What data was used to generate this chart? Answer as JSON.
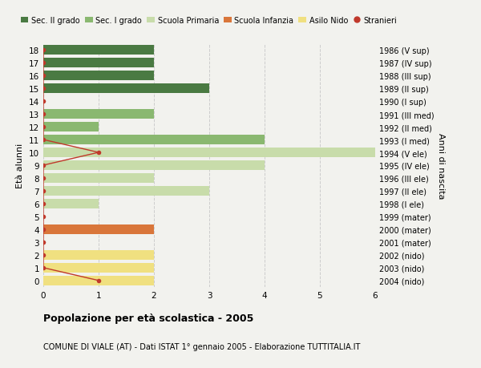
{
  "ages": [
    0,
    1,
    2,
    3,
    4,
    5,
    6,
    7,
    8,
    9,
    10,
    11,
    12,
    13,
    14,
    15,
    16,
    17,
    18
  ],
  "right_labels": [
    "2004 (nido)",
    "2003 (nido)",
    "2002 (nido)",
    "2001 (mater)",
    "2000 (mater)",
    "1999 (mater)",
    "1998 (I ele)",
    "1997 (II ele)",
    "1996 (III ele)",
    "1995 (IV ele)",
    "1994 (V ele)",
    "1993 (I med)",
    "1992 (II med)",
    "1991 (III med)",
    "1990 (I sup)",
    "1989 (II sup)",
    "1988 (III sup)",
    "1987 (IV sup)",
    "1986 (V sup)"
  ],
  "bar_values": [
    2,
    2,
    2,
    0,
    2,
    0,
    1,
    3,
    2,
    4,
    6,
    4,
    1,
    2,
    0,
    3,
    2,
    2,
    2
  ],
  "bar_colors": [
    "#f0e080",
    "#f0e080",
    "#f0e080",
    "#d9763a",
    "#d9763a",
    "#d9763a",
    "#c8dcaa",
    "#c8dcaa",
    "#c8dcaa",
    "#c8dcaa",
    "#c8dcaa",
    "#8ab870",
    "#8ab870",
    "#8ab870",
    "#4a7a42",
    "#4a7a42",
    "#4a7a42",
    "#4a7a42",
    "#4a7a42"
  ],
  "stranieri_x": [
    1,
    0,
    0,
    0,
    0,
    0,
    0,
    0,
    0,
    0,
    1,
    0,
    0,
    0,
    0,
    0,
    0,
    0,
    0
  ],
  "legend_labels": [
    "Sec. II grado",
    "Sec. I grado",
    "Scuola Primaria",
    "Scuola Infanzia",
    "Asilo Nido",
    "Stranieri"
  ],
  "legend_colors": [
    "#4a7a42",
    "#8ab870",
    "#c8dcaa",
    "#d9763a",
    "#f0e080",
    "#c0392b"
  ],
  "stranieri_line_color": "#c0392b",
  "stranieri_dot_color": "#c0392b",
  "ylabel_left": "Età alunni",
  "ylabel_right": "Anni di nascita",
  "title_bold": "Popolazione per età scolastica - 2005",
  "subtitle": "COMUNE DI VIALE (AT) - Dati ISTAT 1° gennaio 2005 - Elaborazione TUTTITALIA.IT",
  "xlim": [
    0,
    6
  ],
  "background_color": "#f2f2ee",
  "grid_color": "#cccccc"
}
